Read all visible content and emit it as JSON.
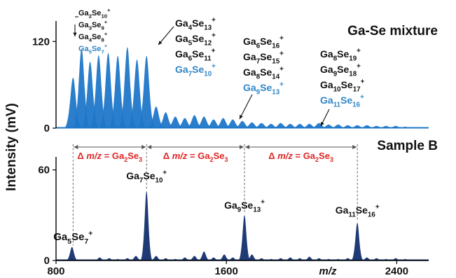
{
  "chart_data": [
    {
      "type": "area",
      "panel": "top",
      "title": "Ga-Se mixture",
      "color": "#1f77c9",
      "xlim": [
        800,
        2550
      ],
      "ylim": [
        0,
        128
      ],
      "y_ticks": [
        "120",
        "0"
      ],
      "y_tick_values": [
        120,
        0
      ],
      "series": [
        {
          "x": [
            880,
            920,
            960,
            1000,
            1045,
            1090,
            1135,
            1180,
            1225,
            1270,
            1315,
            1360,
            1405,
            1450,
            1495,
            1540,
            1585,
            1630,
            1675,
            1720,
            1765,
            1810,
            1855,
            1900,
            1945,
            1990,
            2035,
            2080,
            2125,
            2170,
            2215,
            2260,
            2305,
            2350,
            2395,
            2440
          ],
          "y": [
            70,
            110,
            92,
            101,
            104,
            100,
            112,
            95,
            100,
            30,
            22,
            16,
            14,
            18,
            16,
            12,
            14,
            12,
            10,
            8,
            7,
            6,
            7,
            6,
            6,
            6,
            7,
            5,
            5,
            4,
            4,
            4,
            3,
            3,
            3,
            2
          ]
        }
      ],
      "label_groups": [
        {
          "x": 935,
          "lines": [
            {
              "base": "Ga",
              "n1": "2",
              "el": "Se",
              "n2": "10",
              "color": "black"
            },
            {
              "base": "Ga",
              "n1": "3",
              "el": "Se",
              "n2": "9",
              "color": "black"
            },
            {
              "base": "Ga",
              "n1": "4",
              "el": "Se",
              "n2": "8",
              "color": "black"
            },
            {
              "base": "Ga",
              "n1": "5",
              "el": "Se",
              "n2": "7",
              "color": "blue"
            }
          ]
        },
        {
          "x": 1200,
          "lines": [
            {
              "base": "Ga",
              "n1": "4",
              "el": "Se",
              "n2": "13",
              "color": "black"
            },
            {
              "base": "Ga",
              "n1": "5",
              "el": "Se",
              "n2": "12",
              "color": "black"
            },
            {
              "base": "Ga",
              "n1": "6",
              "el": "Se",
              "n2": "11",
              "color": "black"
            },
            {
              "base": "Ga",
              "n1": "7",
              "el": "Se",
              "n2": "10",
              "color": "blue"
            }
          ]
        },
        {
          "x": 1520,
          "lines": [
            {
              "base": "Ga",
              "n1": "6",
              "el": "Se",
              "n2": "16",
              "color": "black"
            },
            {
              "base": "Ga",
              "n1": "7",
              "el": "Se",
              "n2": "15",
              "color": "black"
            },
            {
              "base": "Ga",
              "n1": "8",
              "el": "Se",
              "n2": "14",
              "color": "black"
            },
            {
              "base": "Ga",
              "n1": "9",
              "el": "Se",
              "n2": "13",
              "color": "blue"
            }
          ]
        },
        {
          "x": 2050,
          "lines": [
            {
              "base": "Ga",
              "n1": "8",
              "el": "Se",
              "n2": "19",
              "color": "black"
            },
            {
              "base": "Ga",
              "n1": "9",
              "el": "Se",
              "n2": "18",
              "color": "black"
            },
            {
              "base": "Ga",
              "n1": "10",
              "el": "Se",
              "n2": "17",
              "color": "black"
            },
            {
              "base": "Ga",
              "n1": "11",
              "el": "Se",
              "n2": "16",
              "color": "blue"
            }
          ]
        }
      ]
    },
    {
      "type": "area",
      "panel": "bottom",
      "title": "Sample B",
      "color": "#13306e",
      "xlim": [
        800,
        2550
      ],
      "ylim": [
        0,
        64
      ],
      "x_ticks": [
        "800",
        "1600",
        "2400"
      ],
      "x_tick_values": [
        800,
        1600,
        2400
      ],
      "y_ticks": [
        "60",
        "0"
      ],
      "y_tick_values": [
        60,
        0
      ],
      "xlabel": "m/z",
      "ylabel": "Intensity (mV)",
      "series": [
        {
          "x": [
            875,
            1005,
            1050,
            1090,
            1135,
            1175,
            1225,
            1270,
            1315,
            1360,
            1405,
            1450,
            1495,
            1540,
            1590,
            1630,
            1685,
            1720,
            1765,
            1810,
            1855,
            1900,
            1945,
            1990,
            2035,
            2080,
            2125,
            2170,
            2215,
            2260,
            2305,
            2350,
            2395,
            2440
          ],
          "y": [
            9,
            2,
            1.5,
            1,
            1.5,
            3,
            46,
            3,
            1.5,
            1,
            2,
            3,
            6,
            2,
            4,
            2,
            30,
            4,
            1.5,
            1,
            1.5,
            2,
            1.5,
            2.5,
            1.5,
            1,
            1,
            1.5,
            25,
            2,
            1.5,
            1,
            1.5,
            1
          ]
        }
      ],
      "peak_labels": [
        {
          "x": 880,
          "base": "Ga",
          "n1": "5",
          "el": "Se",
          "n2": "7"
        },
        {
          "x": 1225,
          "base": "Ga",
          "n1": "7",
          "el": "Se",
          "n2": "10"
        },
        {
          "x": 1685,
          "base": "Ga",
          "n1": "9",
          "el": "Se",
          "n2": "13"
        },
        {
          "x": 2215,
          "base": "Ga",
          "n1": "11",
          "el": "Se",
          "n2": "16"
        }
      ],
      "delta_label": {
        "prefix": "Δ",
        "var": "m/z",
        "eq": "=",
        "base": "Ga",
        "n1": "2",
        "el": "Se",
        "n2": "3"
      },
      "delta_boundaries": [
        880,
        1225,
        1685,
        2215
      ]
    }
  ]
}
